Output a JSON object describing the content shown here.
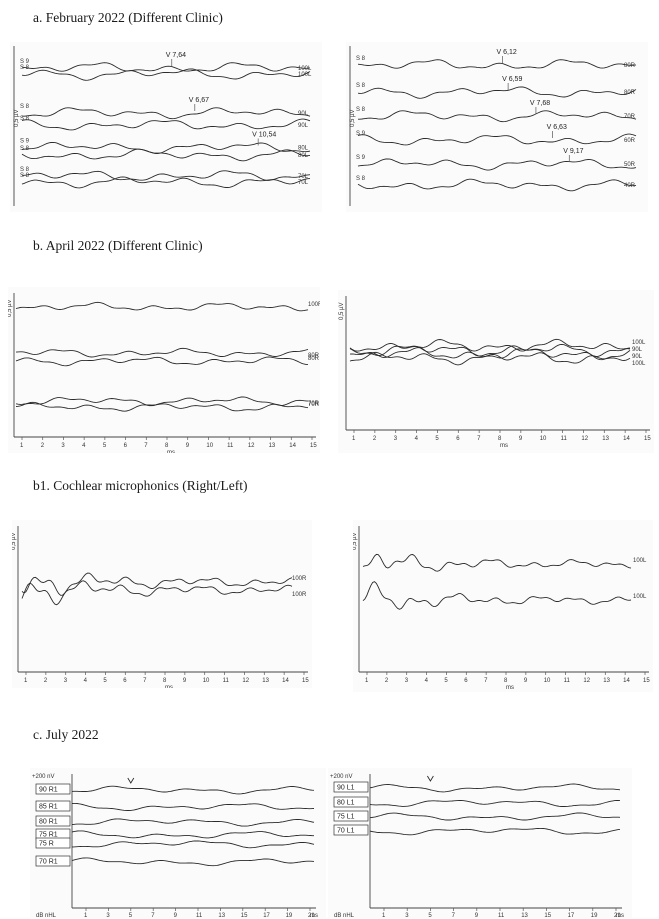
{
  "sections": {
    "a": "a. February 2022 (Different Clinic)",
    "b": "b. April 2022 (Different Clinic)",
    "b1": "b1. Cochlear microphonics (Right/Left)",
    "c": "c. July 2022"
  },
  "chart_data": [
    {
      "id": "a-right",
      "type": "line",
      "scale_label": "0,5 µV",
      "traces": [
        {
          "start_label": "S 9",
          "end_label": "100L",
          "peak_label": "V 7,64",
          "peak_x": 0.52,
          "base": 0.12
        },
        {
          "start_label": "S 8",
          "end_label": "100L",
          "base": 0.16
        },
        {
          "start_label": "S 8",
          "end_label": "90L",
          "peak_label": "V 6,67",
          "peak_x": 0.6,
          "base": 0.42
        },
        {
          "start_label": "S 8",
          "end_label": "90L",
          "base": 0.5
        },
        {
          "start_label": "S 9",
          "end_label": "80L",
          "peak_label": "V 10,54",
          "peak_x": 0.82,
          "base": 0.65
        },
        {
          "start_label": "S 8",
          "end_label": "80L",
          "base": 0.7
        },
        {
          "start_label": "S 8",
          "end_label": "70L",
          "base": 0.84
        },
        {
          "start_label": "S 8",
          "end_label": "70L",
          "base": 0.88
        }
      ]
    },
    {
      "id": "a-left",
      "type": "line",
      "scale_label": "0,5 µV",
      "traces": [
        {
          "start_label": "S 8",
          "end_label": "80R",
          "peak_label": "V 6,12",
          "peak_x": 0.52,
          "base": 0.1
        },
        {
          "start_label": "S 8",
          "end_label": "80R",
          "peak_label": "V 6,59",
          "peak_x": 0.54,
          "base": 0.28
        },
        {
          "start_label": "S 8",
          "end_label": "70R",
          "peak_label": "V 7,68",
          "peak_x": 0.64,
          "base": 0.44
        },
        {
          "start_label": "S 9",
          "end_label": "60R",
          "peak_label": "V 6,63",
          "peak_x": 0.7,
          "base": 0.6
        },
        {
          "start_label": "S 9",
          "end_label": "50R",
          "peak_label": "V 9,17",
          "peak_x": 0.76,
          "base": 0.76
        },
        {
          "start_label": "S 8",
          "end_label": "40R",
          "base": 0.9
        }
      ]
    },
    {
      "id": "b-right",
      "type": "line",
      "scale_label": "0,5 µV",
      "x_ticks": [
        1,
        2,
        3,
        4,
        5,
        6,
        7,
        8,
        9,
        10,
        11,
        12,
        13,
        14,
        15
      ],
      "x_unit": "ms",
      "trace_labels": [
        "100R",
        "80R",
        "80R",
        "70R",
        "70R"
      ]
    },
    {
      "id": "b-left",
      "type": "line",
      "scale_label": "0,5 µV",
      "x_ticks": [
        1,
        2,
        3,
        4,
        5,
        6,
        7,
        8,
        9,
        10,
        11,
        12,
        13,
        14,
        15
      ],
      "x_unit": "ms",
      "trace_labels": [
        "100L",
        "90L",
        "90L",
        "100L"
      ]
    },
    {
      "id": "b1-right",
      "type": "line",
      "scale_label": "0,5 µV",
      "x_ticks": [
        1,
        2,
        3,
        4,
        5,
        6,
        7,
        8,
        9,
        10,
        11,
        12,
        13,
        14,
        15
      ],
      "x_unit": "ms",
      "trace_labels": [
        "100R",
        "100R"
      ]
    },
    {
      "id": "b1-left",
      "type": "line",
      "scale_label": "0,5 µV",
      "x_ticks": [
        1,
        2,
        3,
        4,
        5,
        6,
        7,
        8,
        9,
        10,
        11,
        12,
        13,
        14,
        15
      ],
      "x_unit": "ms",
      "trace_labels": [
        "100L",
        "100L"
      ]
    },
    {
      "id": "c-right",
      "type": "line",
      "scale_label": "+200 nV",
      "x_ticks": [
        1,
        3,
        5,
        7,
        9,
        11,
        13,
        15,
        17,
        19,
        21
      ],
      "x_unit": "ms",
      "corner_label": "dB nHL",
      "trace_labels": [
        "90 R1",
        "85 R1",
        "80 R1",
        "75 R1",
        "75 R",
        "70 R1"
      ]
    },
    {
      "id": "c-left",
      "type": "line",
      "scale_label": "+200 nV",
      "x_ticks": [
        1,
        3,
        5,
        7,
        9,
        11,
        13,
        15,
        17,
        19,
        21
      ],
      "x_unit": "ms",
      "corner_label": "dB nHL",
      "trace_labels": [
        "90 L1",
        "80 L1",
        "75 L1",
        "70 L1"
      ]
    }
  ]
}
